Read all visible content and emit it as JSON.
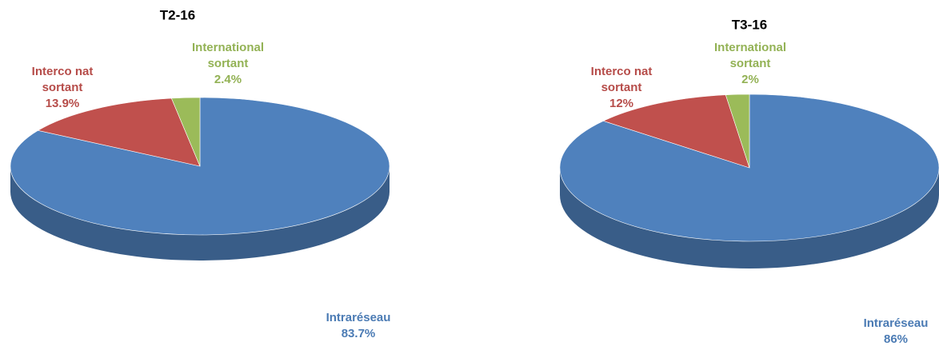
{
  "chart_data": [
    {
      "type": "pie",
      "title": "T2-16",
      "categories": [
        "Intraréseau",
        "Interco nat sortant",
        "International sortant"
      ],
      "values": [
        83.7,
        13.9,
        2.4
      ],
      "value_labels": [
        "83.7%",
        "13.9%",
        "2.4%"
      ],
      "colors": [
        "#4f81bd",
        "#c0504d",
        "#9bbb59"
      ]
    },
    {
      "type": "pie",
      "title": "T3-16",
      "categories": [
        "Intraréseau",
        "Interco nat sortant",
        "International sortant"
      ],
      "values": [
        86,
        12,
        2
      ],
      "value_labels": [
        "86%",
        "12%",
        "2%"
      ],
      "colors": [
        "#4f81bd",
        "#c0504d",
        "#9bbb59"
      ]
    }
  ]
}
